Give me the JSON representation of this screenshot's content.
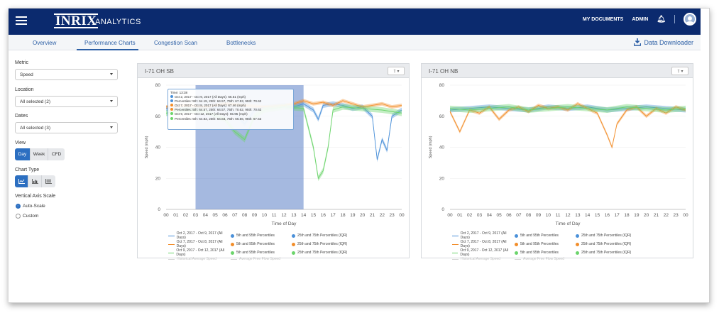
{
  "app": {
    "logo": "INRIX",
    "logo_sub": "ANALYTICS"
  },
  "nav": {
    "my_documents": "MY DOCUMENTS",
    "admin": "ADMIN"
  },
  "tabs": [
    "Overview",
    "Performance Charts",
    "Congestion Scan",
    "Bottlenecks"
  ],
  "active_tab": "Performance Charts",
  "downloader_label": "Data Downloader",
  "sidebar": {
    "metric_label": "Metric",
    "metric_value": "Speed",
    "location_label": "Location",
    "location_value": "All selected (2)",
    "dates_label": "Dates",
    "dates_value": "All selected (3)",
    "view_label": "View",
    "view_options": [
      "Day",
      "Week",
      "CFD"
    ],
    "view_selected": "Day",
    "chart_type_label": "Chart Type",
    "chart_type_icons": [
      "line-chart-icon",
      "bar-chart-icon",
      "stacked-chart-icon"
    ],
    "axis_label": "Vertical Axis Scale",
    "axis_options": [
      "Auto-Scale",
      "Custom"
    ],
    "axis_selected": "Auto-Scale"
  },
  "colors": {
    "nav": "#0b2a6e",
    "accent": "#2c6fc1",
    "series1": "#4a90d9",
    "series2": "#f28e2b",
    "series3": "#6bd46b",
    "selection": "#5b7fc6"
  },
  "chart_data": [
    {
      "title": "I-71 OH SB",
      "type": "line",
      "ylabel": "Speed (mph)",
      "xlabel": "Time of Day",
      "ylim": [
        0,
        80
      ],
      "yticks": [
        0,
        20,
        40,
        60,
        80
      ],
      "x_ticks": [
        "00",
        "01",
        "02",
        "03",
        "04",
        "05",
        "06",
        "07",
        "08",
        "09",
        "10",
        "11",
        "12",
        "13",
        "14",
        "15",
        "16",
        "17",
        "18",
        "19",
        "20",
        "21",
        "22",
        "23",
        "00"
      ],
      "selection_hours": [
        3,
        14
      ],
      "series": [
        {
          "name": "Oct 2, 2017 - Oct 9, 2017 (All Days)",
          "color": "#4a90d9",
          "hours": [
            0,
            2,
            4,
            6,
            7,
            8,
            9,
            10,
            12,
            13,
            14,
            15,
            15.5,
            16,
            17,
            18,
            19,
            20,
            21,
            21.5,
            22,
            22.5,
            23,
            24
          ],
          "values": [
            65,
            64,
            66,
            65,
            62,
            55,
            64,
            66,
            67,
            66,
            68,
            64,
            58,
            67,
            68,
            67,
            65,
            66,
            60,
            32,
            45,
            38,
            60,
            64
          ]
        },
        {
          "name": "Oct 7, 2017 - Oct 8, 2017 (All Days)",
          "color": "#f28e2b",
          "hours": [
            0,
            2,
            4,
            6,
            8,
            10,
            12,
            13,
            14,
            15,
            16,
            17,
            18,
            19,
            20,
            21,
            22,
            23,
            24
          ],
          "values": [
            66,
            67,
            66,
            68,
            67,
            66,
            67,
            68,
            70,
            68,
            69,
            67,
            70,
            68,
            66,
            67,
            68,
            66,
            67
          ]
        },
        {
          "name": "Oct 9, 2017 - Oct 12, 2017 (All Days)",
          "color": "#6bd46b",
          "hours": [
            0,
            2,
            4,
            6,
            7,
            8,
            9,
            10,
            12,
            14,
            15,
            15.5,
            16,
            16.5,
            17,
            18,
            20,
            22,
            24
          ],
          "values": [
            62,
            64,
            63,
            58,
            50,
            45,
            60,
            64,
            66,
            65,
            40,
            20,
            25,
            40,
            64,
            66,
            65,
            64,
            62
          ]
        }
      ],
      "percentile_bands": [
        "5th and 95th Percentiles",
        "25th and 75th Percentiles (IQR)"
      ],
      "extra_legend": [
        "Historical Average Speed",
        "Average Free Flow Speed"
      ],
      "tooltip": {
        "time": "Time: 13:38",
        "lines": [
          "Oct 2, 2017 - Oct 9, 2017 (All Days): 66.51 (mph)",
          "Percentiles: 5th: 64.19, 25th: 64.57, 75th: 67.53, 95th: 70.62",
          "Oct 7, 2017 - Oct 8, 2017 (All Days): 67.46 (mph)",
          "Percentiles: 5th: 64.57, 25th: 64.57, 75th: 70.62, 95th: 70.62",
          "Oct 9, 2017 - Oct 12, 2017 (All Days): 65.95 (mph)",
          "Percentiles: 5th: 64.83, 25th: 64.83, 75th: 66.56, 95th: 67.53"
        ]
      }
    },
    {
      "title": "I-71 OH NB",
      "type": "line",
      "ylabel": "Speed (mph)",
      "xlabel": "Time of Day",
      "ylim": [
        0,
        80
      ],
      "yticks": [
        0,
        20,
        40,
        60,
        80
      ],
      "x_ticks": [
        "00",
        "01",
        "02",
        "03",
        "04",
        "05",
        "06",
        "07",
        "08",
        "09",
        "10",
        "11",
        "12",
        "13",
        "14",
        "15",
        "16",
        "17",
        "18",
        "19",
        "20",
        "21",
        "22",
        "23",
        "00"
      ],
      "series": [
        {
          "name": "Oct 2, 2017 - Oct 9, 2017 (All Days)",
          "color": "#4a90d9",
          "hours": [
            0,
            2,
            4,
            6,
            8,
            10,
            12,
            14,
            16,
            18,
            20,
            22,
            24
          ],
          "values": [
            64,
            65,
            66,
            65,
            64,
            66,
            65,
            66,
            64,
            65,
            66,
            65,
            64
          ]
        },
        {
          "name": "Oct 7, 2017 - Oct 8, 2017 (All Days)",
          "color": "#f28e2b",
          "hours": [
            0,
            1,
            2,
            3,
            4,
            5,
            6,
            7,
            8,
            9,
            10,
            11,
            12,
            13,
            14,
            15,
            16,
            16.5,
            17,
            18,
            19,
            20,
            21,
            22,
            23,
            24
          ],
          "values": [
            63,
            50,
            64,
            62,
            66,
            58,
            64,
            66,
            63,
            67,
            65,
            66,
            64,
            68,
            65,
            62,
            48,
            40,
            55,
            64,
            66,
            60,
            65,
            62,
            66,
            64
          ]
        },
        {
          "name": "Oct 9, 2017 - Oct 12, 2017 (All Days)",
          "color": "#6bd46b",
          "hours": [
            0,
            2,
            4,
            6,
            8,
            10,
            12,
            14,
            16,
            18,
            20,
            22,
            24
          ],
          "values": [
            65,
            64,
            65,
            66,
            64,
            65,
            66,
            65,
            64,
            66,
            65,
            64,
            65
          ]
        }
      ],
      "percentile_bands": [
        "5th and 95th Percentiles",
        "25th and 75th Percentiles (IQR)"
      ],
      "extra_legend": [
        "Historical Average Speed",
        "Average Free Flow Speed"
      ]
    }
  ]
}
